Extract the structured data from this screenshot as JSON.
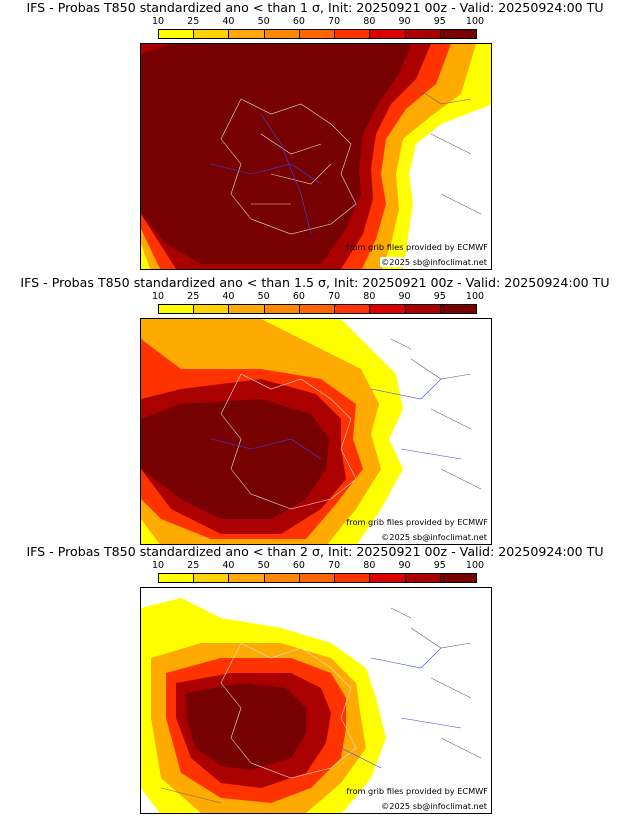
{
  "colorbar": {
    "labels": [
      "10",
      "25",
      "40",
      "50",
      "60",
      "70",
      "80",
      "90",
      "95",
      "100"
    ],
    "colors": [
      "#ffff00",
      "#ffd400",
      "#ffaa00",
      "#ff8800",
      "#ff6600",
      "#ff3300",
      "#dd0000",
      "#aa0000",
      "#770000"
    ]
  },
  "panels": [
    {
      "title": "IFS - Probas T850  standardized ano < than 1 σ, Init: 20250921 00z - Valid: 20250924:00 TU",
      "credit": "from grib files provided by ECMWF",
      "copyright": "©2025 sb@infoclimat.net"
    },
    {
      "title": "IFS - Probas T850  standardized ano < than 1.5 σ, Init: 20250921 00z - Valid: 20250924:00 TU",
      "credit": "from grib files provided by ECMWF",
      "copyright": "©2025 sb@infoclimat.net"
    },
    {
      "title": "IFS - Probas T850  standardized ano < than 2 σ, Init: 20250921 00z - Valid: 20250924:00 TU",
      "credit": "from grib files provided by ECMWF",
      "copyright": "©2025 sb@infoclimat.net"
    }
  ]
}
